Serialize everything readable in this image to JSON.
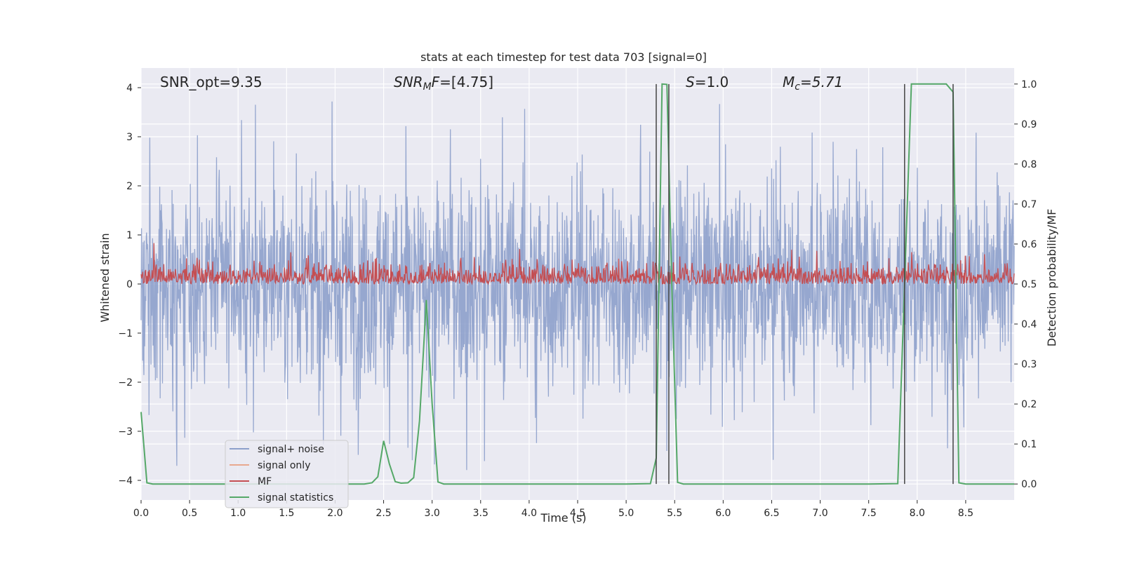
{
  "chart_data": {
    "type": "line",
    "title": "stats at each timestep for test data 703 [signal=0]",
    "xlabel": "Time (s)",
    "ylabel_left": "Whitened strain",
    "ylabel_right": "Detection probability/MF",
    "xlim": [
      0.0,
      9.0
    ],
    "ylim_left": [
      -4.4,
      4.4
    ],
    "ylim_right": [
      -0.04,
      1.04
    ],
    "grid": true,
    "x_ticks": [
      "0.0",
      "0.5",
      "1.0",
      "1.5",
      "2.0",
      "2.5",
      "3.0",
      "3.5",
      "4.0",
      "4.5",
      "5.0",
      "5.5",
      "6.0",
      "6.5",
      "7.0",
      "7.5",
      "8.0",
      "8.5"
    ],
    "y_ticks_left": [
      "4",
      "3",
      "2",
      "1",
      "0",
      "−1",
      "−2",
      "−3",
      "−4"
    ],
    "y_ticks_right": [
      "1.0",
      "0.9",
      "0.8",
      "0.7",
      "0.6",
      "0.5",
      "0.4",
      "0.3",
      "0.2",
      "0.1",
      "0.0"
    ],
    "annotations": [
      {
        "id": "snr_opt",
        "text": "SNR_opt=9.35"
      },
      {
        "id": "snr_mf",
        "main": "SNR",
        "sub": "M",
        "rest": "F=[4.75]"
      },
      {
        "id": "s",
        "main": "S",
        "rest": "=1.0"
      },
      {
        "id": "mc",
        "main": "M",
        "sub": "c",
        "rest": "=5.71"
      }
    ],
    "legend": {
      "placement": "lower-left",
      "entries": [
        {
          "label": "signal+ noise",
          "color": "#8da0cb"
        },
        {
          "label": "signal only",
          "color": "#e8a88e"
        },
        {
          "label": "MF",
          "color": "#c44e52"
        },
        {
          "label": "signal statistics",
          "color": "#55a868"
        }
      ]
    },
    "series": [
      {
        "name": "signal statistics",
        "axis": "right",
        "color": "#55a868",
        "x": [
          0.0,
          0.06,
          0.12,
          0.18,
          0.5,
          1.0,
          1.5,
          2.0,
          2.3,
          2.38,
          2.44,
          2.5,
          2.56,
          2.62,
          2.68,
          2.75,
          2.81,
          2.87,
          2.94,
          3.0,
          3.06,
          3.12,
          3.5,
          4.0,
          4.5,
          5.0,
          5.25,
          5.31,
          5.37,
          5.42,
          5.47,
          5.53,
          5.59,
          5.8,
          6.5,
          7.5,
          7.8,
          7.87,
          7.94,
          8.0,
          8.3,
          8.37,
          8.43,
          8.5,
          9.0
        ],
        "y": [
          0.18,
          0.003,
          0.0,
          0.0,
          0.0,
          0.0,
          0.0,
          0.0,
          0.0,
          0.003,
          0.018,
          0.108,
          0.05,
          0.006,
          0.002,
          0.003,
          0.016,
          0.158,
          0.46,
          0.2,
          0.005,
          0.0,
          0.0,
          0.0,
          0.0,
          0.0,
          0.001,
          0.065,
          1.0,
          0.999,
          0.5,
          0.004,
          0.0,
          0.0,
          0.0,
          0.0,
          0.001,
          0.5,
          1.0,
          1.0,
          1.0,
          0.98,
          0.003,
          0.0,
          0.0
        ]
      },
      {
        "name": "signal+ noise",
        "axis": "left",
        "color": "#8da0cb"
      },
      {
        "name": "MF",
        "axis": "right",
        "color": "#c44e52"
      }
    ],
    "vertical_markers": [
      5.31,
      5.44,
      7.87,
      8.37
    ],
    "colors": {
      "axes_bg": "#eaeaf2",
      "grid": "#ffffff",
      "strain": "#8da0cb",
      "mf": "#c44e52",
      "stats": "#55a868",
      "signal_only": "#e8a88e",
      "marker": "#444444"
    }
  }
}
